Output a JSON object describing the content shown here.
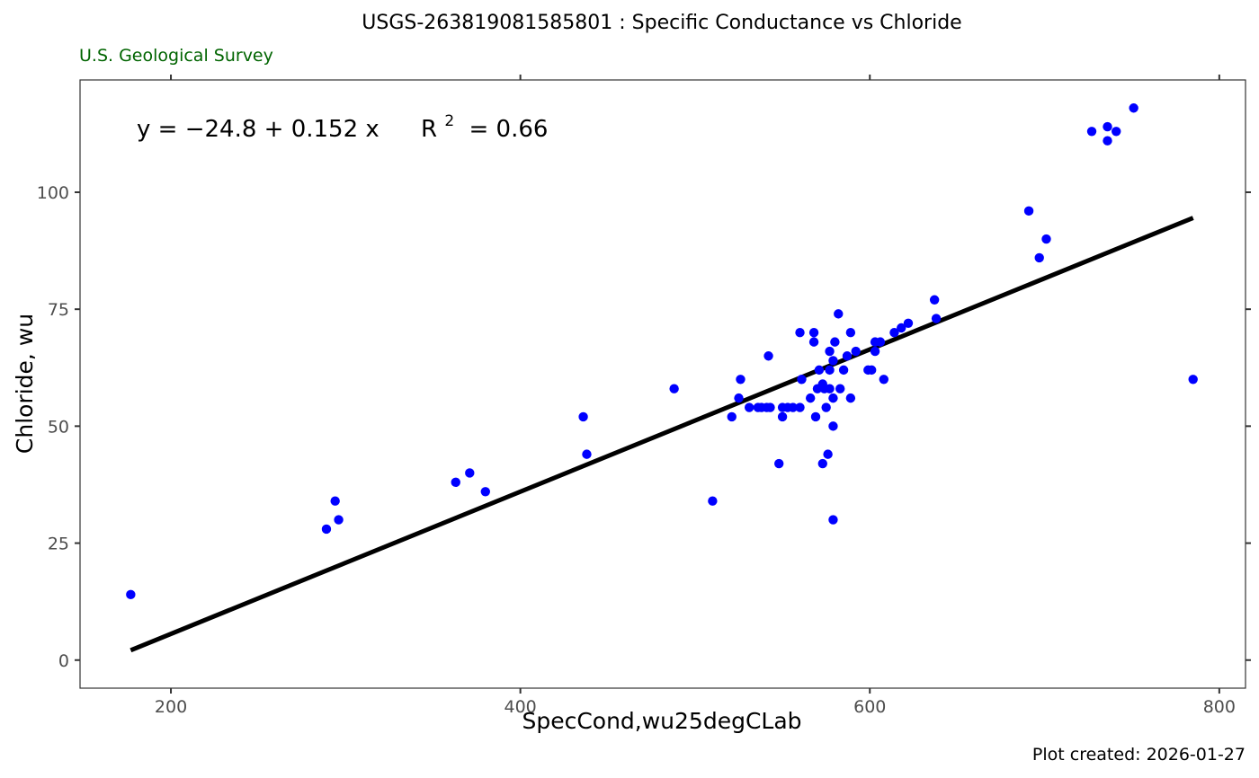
{
  "colors": {
    "points": "#0000ff",
    "fit_line": "#000000",
    "subtitle": "#006400",
    "frame": "#333333",
    "tick_label": "#4d4d4d"
  },
  "caption": "Plot created: 2026-01-27",
  "chart_data": {
    "type": "scatter",
    "title": "USGS-263819081585801 : Specific Conductance vs Chloride",
    "subtitle": "U.S. Geological Survey",
    "xlabel": "SpecCond,wu25degCLab",
    "ylabel": "Chloride, wu",
    "xlim": [
      148,
      815
    ],
    "ylim": [
      -6,
      124
    ],
    "x_ticks": [
      200,
      400,
      600,
      800
    ],
    "y_ticks": [
      0,
      25,
      50,
      75,
      100
    ],
    "grid": false,
    "annotation": {
      "equation": "y = −24.8 + 0.152 x",
      "r2_label": "R",
      "r2_sup": "2",
      "r2_value": "= 0.66"
    },
    "fit": {
      "intercept": -24.8,
      "slope": 0.152,
      "x_range": [
        177,
        785
      ]
    },
    "points": [
      [
        177,
        14
      ],
      [
        289,
        28
      ],
      [
        294,
        34
      ],
      [
        296,
        30
      ],
      [
        363,
        38
      ],
      [
        371,
        40
      ],
      [
        380,
        36
      ],
      [
        436,
        52
      ],
      [
        438,
        44
      ],
      [
        488,
        58
      ],
      [
        510,
        34
      ],
      [
        521,
        52
      ],
      [
        525,
        56
      ],
      [
        526,
        60
      ],
      [
        531,
        54
      ],
      [
        536,
        54
      ],
      [
        538,
        54
      ],
      [
        541,
        54
      ],
      [
        543,
        54
      ],
      [
        542,
        65
      ],
      [
        548,
        42
      ],
      [
        550,
        52
      ],
      [
        550,
        54
      ],
      [
        553,
        54
      ],
      [
        556,
        54
      ],
      [
        560,
        70
      ],
      [
        560,
        54
      ],
      [
        561,
        60
      ],
      [
        566,
        56
      ],
      [
        568,
        70
      ],
      [
        568,
        68
      ],
      [
        569,
        52
      ],
      [
        570,
        58
      ],
      [
        571,
        62
      ],
      [
        573,
        59
      ],
      [
        573,
        42
      ],
      [
        574,
        58
      ],
      [
        575,
        54
      ],
      [
        576,
        44
      ],
      [
        577,
        66
      ],
      [
        577,
        62
      ],
      [
        577,
        58
      ],
      [
        579,
        64
      ],
      [
        579,
        56
      ],
      [
        579,
        50
      ],
      [
        579,
        30
      ],
      [
        580,
        68
      ],
      [
        582,
        74
      ],
      [
        583,
        58
      ],
      [
        585,
        62
      ],
      [
        587,
        65
      ],
      [
        589,
        70
      ],
      [
        589,
        56
      ],
      [
        592,
        66
      ],
      [
        599,
        62
      ],
      [
        601,
        62
      ],
      [
        603,
        68
      ],
      [
        603,
        66
      ],
      [
        606,
        68
      ],
      [
        608,
        60
      ],
      [
        614,
        70
      ],
      [
        618,
        71
      ],
      [
        622,
        72
      ],
      [
        637,
        77
      ],
      [
        638,
        73
      ],
      [
        691,
        96
      ],
      [
        697,
        86
      ],
      [
        701,
        90
      ],
      [
        727,
        113
      ],
      [
        736,
        114
      ],
      [
        736,
        111
      ],
      [
        741,
        113
      ],
      [
        751,
        118
      ],
      [
        785,
        60
      ]
    ]
  }
}
